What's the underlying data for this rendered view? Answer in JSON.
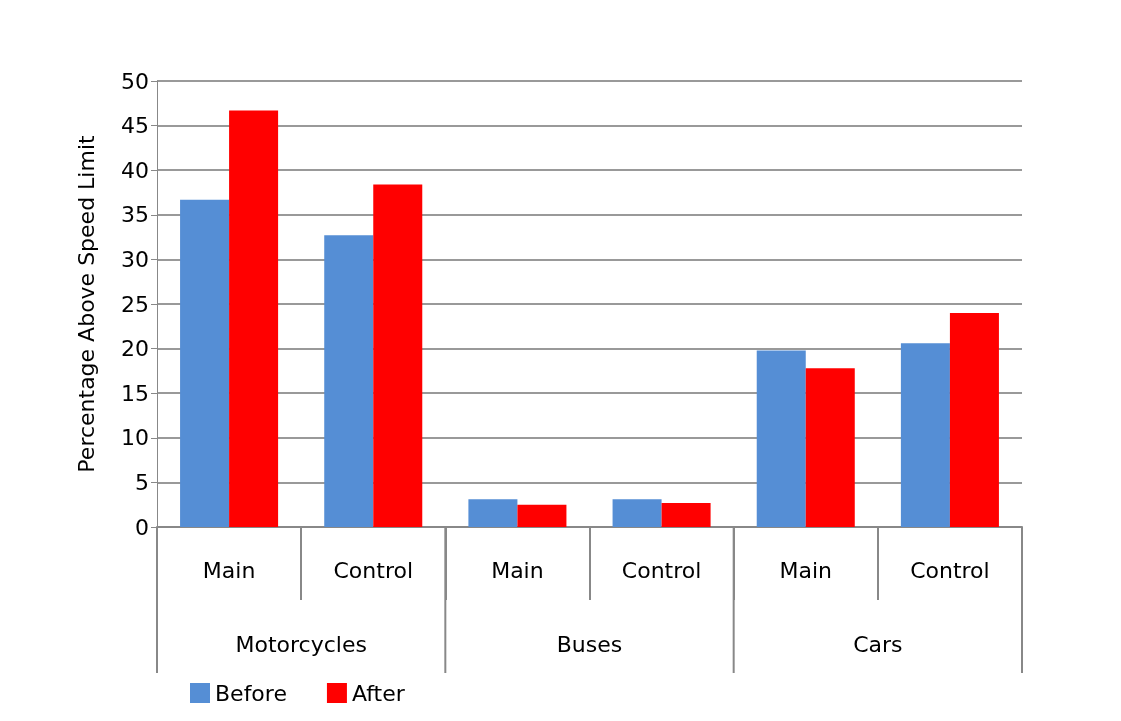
{
  "chart_data": {
    "type": "bar",
    "ylabel": "Percentage Above Speed Limit",
    "categories": [
      "Main",
      "Control",
      "Main",
      "Control",
      "Main",
      "Control"
    ],
    "annotations": [
      "Motorcycles",
      "Buses",
      "Cars"
    ],
    "series": [
      {
        "name": "Before",
        "color": "#558ed5",
        "values": [
          36.7,
          32.7,
          3.1,
          3.1,
          19.8,
          20.6
        ]
      },
      {
        "name": "After",
        "color": "#ff0000",
        "values": [
          46.7,
          38.4,
          2.5,
          2.7,
          17.8,
          24.0
        ]
      }
    ],
    "ylim": [
      0,
      50
    ],
    "yticks": [
      0,
      5,
      10,
      15,
      20,
      25,
      30,
      35,
      40,
      45,
      50
    ],
    "grid": "y",
    "legend": "bottom left"
  }
}
